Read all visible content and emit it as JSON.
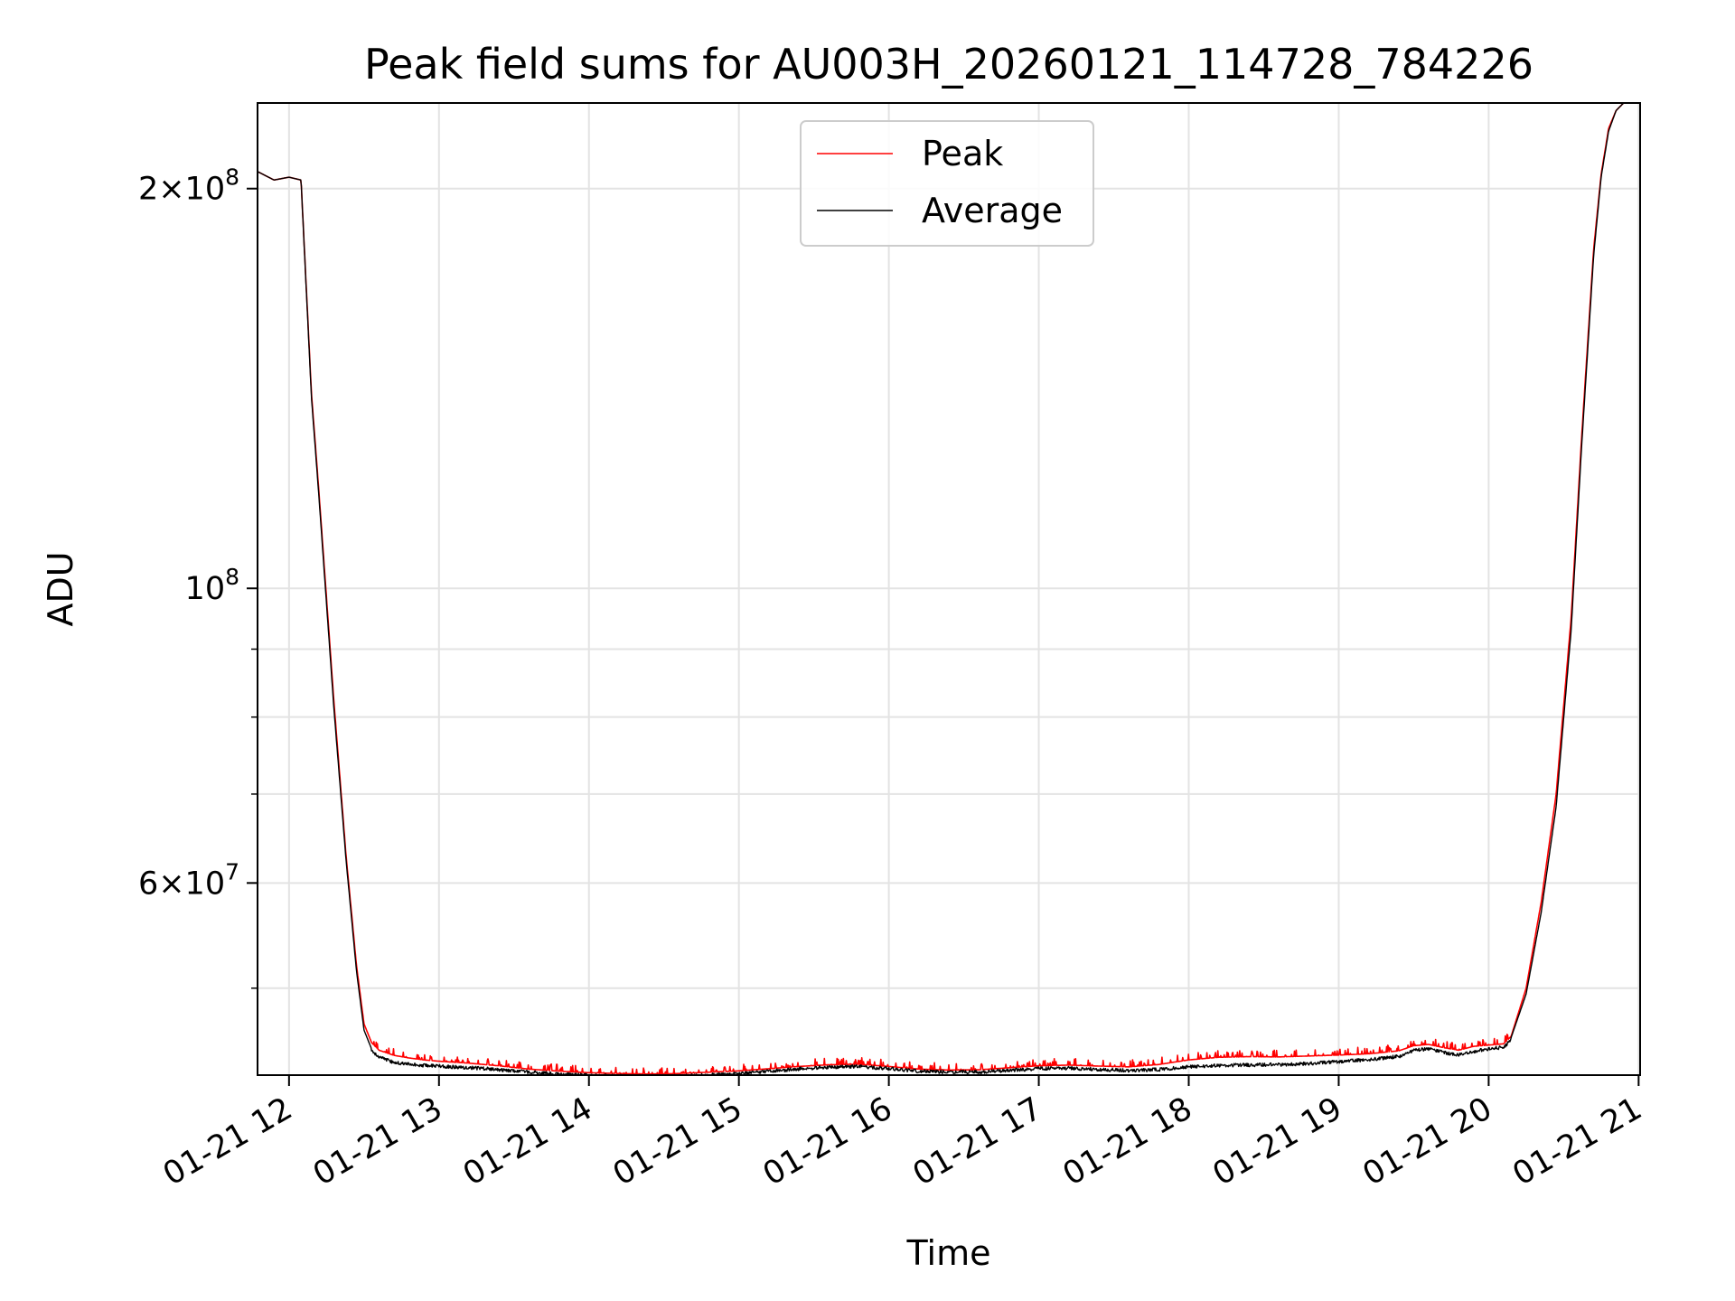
{
  "chart_data": {
    "type": "line",
    "title": "Peak field sums for AU003H_20260121_114728_784226",
    "xlabel": "Time",
    "ylabel": "ADU",
    "yscale": "log",
    "ylim": [
      43000000,
      232000000
    ],
    "xlim_hours": [
      11.79,
      21.01
    ],
    "grid": true,
    "legend_position": "top-center",
    "x_ticks": [
      {
        "hour": 12,
        "label": "01-21 12"
      },
      {
        "hour": 13,
        "label": "01-21 13"
      },
      {
        "hour": 14,
        "label": "01-21 14"
      },
      {
        "hour": 15,
        "label": "01-21 15"
      },
      {
        "hour": 16,
        "label": "01-21 16"
      },
      {
        "hour": 17,
        "label": "01-21 17"
      },
      {
        "hour": 18,
        "label": "01-21 18"
      },
      {
        "hour": 19,
        "label": "01-21 19"
      },
      {
        "hour": 20,
        "label": "01-21 20"
      },
      {
        "hour": 21,
        "label": "01-21 21"
      }
    ],
    "y_major_ticks": [
      {
        "value": 200000000,
        "mantissa": "2",
        "exponent": "8"
      },
      {
        "value": 100000000,
        "mantissa": "",
        "exponent": "8"
      },
      {
        "value": 60000000,
        "mantissa": "6",
        "exponent": "7"
      }
    ],
    "y_minor_ticks": [
      50000000,
      70000000,
      80000000,
      90000000
    ],
    "series": [
      {
        "name": "Peak",
        "color": "#ff0000",
        "x_hours": [
          11.79,
          11.9,
          12.0,
          12.08,
          12.15,
          12.2,
          12.3,
          12.38,
          12.45,
          12.5,
          12.55,
          12.6,
          12.7,
          12.8,
          12.9,
          13.0,
          13.2,
          13.4,
          13.6,
          13.8,
          14.0,
          14.2,
          14.4,
          14.6,
          14.8,
          15.0,
          15.2,
          15.4,
          15.6,
          15.8,
          16.0,
          16.2,
          16.4,
          16.6,
          16.8,
          17.0,
          17.2,
          17.4,
          17.6,
          17.8,
          18.0,
          18.2,
          18.4,
          18.6,
          18.8,
          19.0,
          19.2,
          19.4,
          19.5,
          19.6,
          19.7,
          19.8,
          19.9,
          20.0,
          20.1,
          20.15,
          20.25,
          20.35,
          20.45,
          20.55,
          20.62,
          20.7,
          20.75,
          20.8,
          20.85,
          20.9,
          20.95,
          21.01
        ],
        "values": [
          206000000,
          203000000,
          204000000,
          203000000,
          140000000,
          118000000,
          82000000,
          63000000,
          52000000,
          47000000,
          45500000,
          44900000,
          44500000,
          44300000,
          44150000,
          44050000,
          43900000,
          43700000,
          43450000,
          43300000,
          43180000,
          43120000,
          43080000,
          43120000,
          43220000,
          43320000,
          43480000,
          43650000,
          43780000,
          43820000,
          43650000,
          43450000,
          43380000,
          43400000,
          43550000,
          43700000,
          43750000,
          43680000,
          43620000,
          43800000,
          44150000,
          44350000,
          44400000,
          44380000,
          44450000,
          44520000,
          44620000,
          44850000,
          45250000,
          45350000,
          45100000,
          44900000,
          45200000,
          45300000,
          45400000,
          46000000,
          50000000,
          58000000,
          70000000,
          95000000,
          130000000,
          180000000,
          205000000,
          222000000,
          229000000,
          232000000,
          232000000,
          232000000
        ]
      },
      {
        "name": "Average",
        "color": "#000000",
        "x_hours": [
          11.79,
          11.9,
          12.0,
          12.08,
          12.15,
          12.2,
          12.3,
          12.38,
          12.45,
          12.5,
          12.55,
          12.6,
          12.7,
          12.8,
          12.9,
          13.0,
          13.2,
          13.4,
          13.6,
          13.8,
          14.0,
          14.2,
          14.4,
          14.6,
          14.8,
          15.0,
          15.2,
          15.4,
          15.6,
          15.8,
          16.0,
          16.2,
          16.4,
          16.6,
          16.8,
          17.0,
          17.2,
          17.4,
          17.6,
          17.8,
          18.0,
          18.2,
          18.4,
          18.6,
          18.8,
          19.0,
          19.2,
          19.4,
          19.5,
          19.6,
          19.7,
          19.8,
          19.9,
          20.0,
          20.1,
          20.15,
          20.25,
          20.35,
          20.45,
          20.55,
          20.62,
          20.7,
          20.75,
          20.8,
          20.85,
          20.9,
          20.95,
          21.01
        ],
        "values": [
          206000000,
          203000000,
          204000000,
          203000000,
          139000000,
          117000000,
          81000000,
          62500000,
          51500000,
          46500000,
          45000000,
          44500000,
          44100000,
          43950000,
          43850000,
          43800000,
          43700000,
          43550000,
          43350000,
          43200000,
          43100000,
          43060000,
          43030000,
          43050000,
          43140000,
          43250000,
          43420000,
          43600000,
          43740000,
          43780000,
          43620000,
          43430000,
          43360000,
          43370000,
          43480000,
          43620000,
          43650000,
          43570000,
          43480000,
          43550000,
          43750000,
          43870000,
          43900000,
          43920000,
          44000000,
          44150000,
          44300000,
          44550000,
          45000000,
          45150000,
          44850000,
          44650000,
          44950000,
          45150000,
          45250000,
          45900000,
          49500000,
          57000000,
          68500000,
          93000000,
          128000000,
          178000000,
          204000000,
          221000000,
          229000000,
          232000000,
          232000000,
          232000000
        ]
      }
    ]
  }
}
